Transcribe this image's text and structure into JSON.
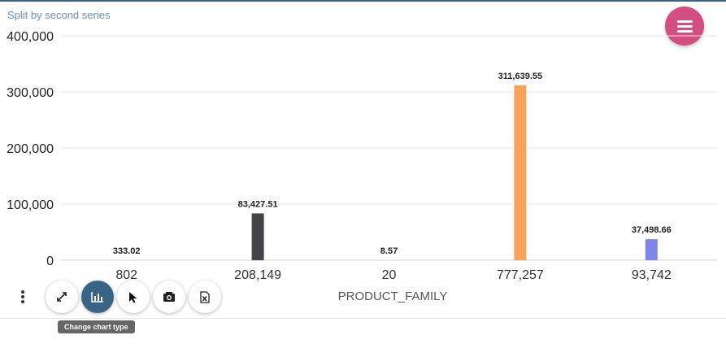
{
  "subtitle": "Split by second series",
  "menu_button_icon": "hamburger-icon",
  "colors": {
    "accent": "#3a6486",
    "fab": "#d24f80",
    "tooltip_bg": "#666666"
  },
  "toolbar": {
    "more_icon": "kebab-icon",
    "buttons": [
      {
        "name": "fullscreen-button",
        "icon": "expand-icon"
      },
      {
        "name": "change-chart-type-button",
        "icon": "bar-chart-icon",
        "active": true
      },
      {
        "name": "select-button",
        "icon": "cursor-icon"
      },
      {
        "name": "screenshot-button",
        "icon": "camera-icon"
      },
      {
        "name": "export-excel-button",
        "icon": "excel-icon"
      }
    ],
    "tooltip": "Change chart type"
  },
  "chart_data": {
    "type": "bar",
    "title": "",
    "xlabel": "PRODUCT_FAMILY",
    "ylabel": "",
    "ylim": [
      0,
      400000
    ],
    "yticks": [
      0,
      100000,
      200000,
      300000,
      400000
    ],
    "ytick_labels": [
      "0",
      "100,000",
      "200,000",
      "300,000",
      "400,000"
    ],
    "categories": [
      "802",
      "208,149",
      "20",
      "777,257",
      "93,742"
    ],
    "values": [
      333.02,
      83427.51,
      8.57,
      311639.55,
      37498.66
    ],
    "value_labels": [
      "333.02",
      "83,427.51",
      "8.57",
      "311,639.55",
      "37,498.66"
    ],
    "bar_colors": [
      "#e3e3e3",
      "#434348",
      "#e3e3e3",
      "#f7a35c",
      "#8085e9"
    ],
    "grid": true,
    "legend": "none"
  }
}
